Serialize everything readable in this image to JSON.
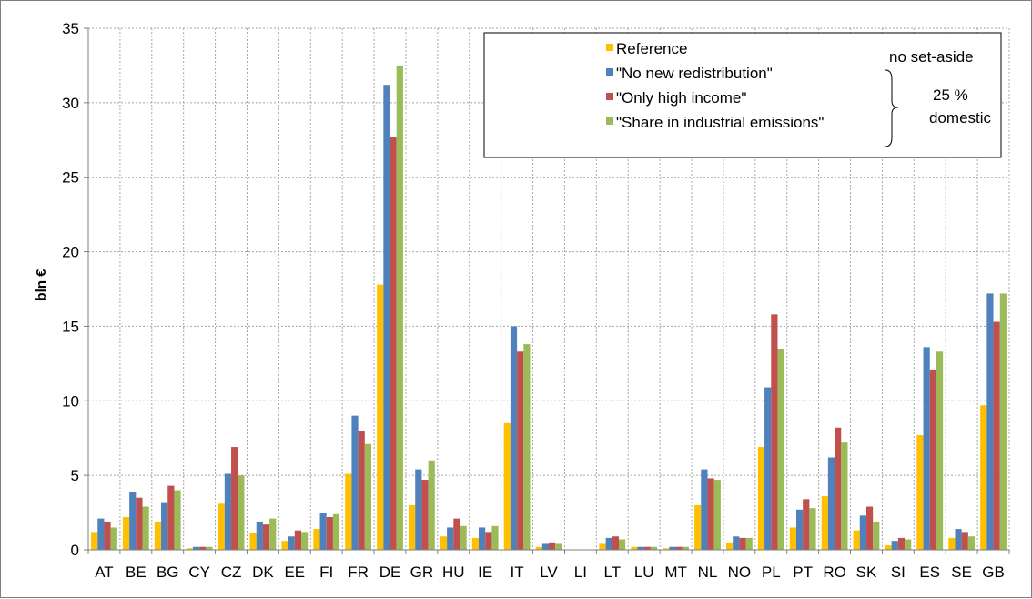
{
  "chart_data": {
    "type": "bar",
    "ylabel": "bln €",
    "ylim": [
      0,
      35
    ],
    "yticks": [
      0,
      5,
      10,
      15,
      20,
      25,
      30,
      35
    ],
    "grid": true,
    "legend_position": "top-right",
    "categories": [
      "AT",
      "BE",
      "BG",
      "CY",
      "CZ",
      "DK",
      "EE",
      "FI",
      "FR",
      "DE",
      "GR",
      "HU",
      "IE",
      "IT",
      "LV",
      "LI",
      "LT",
      "LU",
      "MT",
      "NL",
      "NO",
      "PL",
      "PT",
      "RO",
      "SK",
      "SI",
      "ES",
      "SE",
      "GB"
    ],
    "series": [
      {
        "name": "Reference",
        "color": "#ffc000",
        "values": [
          1.2,
          2.2,
          1.9,
          0.1,
          3.1,
          1.1,
          0.6,
          1.4,
          5.1,
          17.8,
          3.0,
          0.9,
          0.8,
          8.5,
          0.2,
          0.0,
          0.4,
          0.2,
          0.1,
          3.0,
          0.5,
          6.9,
          1.5,
          3.6,
          1.3,
          0.3,
          7.7,
          0.8,
          9.7
        ]
      },
      {
        "name": "\"No new redistribution\"",
        "color": "#4f81bd",
        "values": [
          2.1,
          3.9,
          3.2,
          0.2,
          5.1,
          1.9,
          0.9,
          2.5,
          9.0,
          31.2,
          5.4,
          1.5,
          1.5,
          15.0,
          0.4,
          0.0,
          0.8,
          0.2,
          0.2,
          5.4,
          0.9,
          10.9,
          2.7,
          6.2,
          2.3,
          0.6,
          13.6,
          1.4,
          17.2
        ]
      },
      {
        "name": "\"Only high income\"",
        "color": "#c0504d",
        "values": [
          1.9,
          3.5,
          4.3,
          0.2,
          6.9,
          1.7,
          1.3,
          2.2,
          8.0,
          27.7,
          4.7,
          2.1,
          1.2,
          13.3,
          0.5,
          0.0,
          0.9,
          0.2,
          0.2,
          4.8,
          0.8,
          15.8,
          3.4,
          8.2,
          2.9,
          0.8,
          12.1,
          1.2,
          15.3
        ]
      },
      {
        "name": "\"Share in industrial emissions\"",
        "color": "#9bbb59",
        "values": [
          1.5,
          2.9,
          4.0,
          0.2,
          5.0,
          2.1,
          1.2,
          2.4,
          7.1,
          32.5,
          6.0,
          1.6,
          1.6,
          13.8,
          0.4,
          0.0,
          0.7,
          0.2,
          0.2,
          4.7,
          0.8,
          13.5,
          2.8,
          7.2,
          1.9,
          0.7,
          13.3,
          0.9,
          17.2
        ]
      }
    ],
    "annotations": {
      "no_set_aside": "no set-aside",
      "domestic_pct": "25 %",
      "domestic": "domestic"
    }
  }
}
